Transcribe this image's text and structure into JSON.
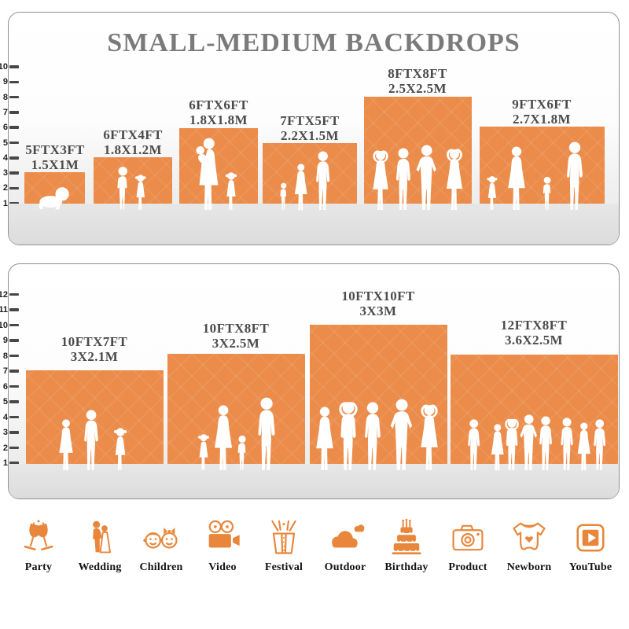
{
  "title": "SMALL-MEDIUM BACKDROPS",
  "panels": [
    {
      "name": "small-medium-backdrops",
      "ruler": [
        "10",
        "9",
        "8",
        "7",
        "6",
        "5",
        "4",
        "3",
        "2",
        "1"
      ],
      "ruler_unit": "ft",
      "backdrops": [
        {
          "ft": "5FTX3FT",
          "m": "1.5X1M"
        },
        {
          "ft": "6FTX4FT",
          "m": "1.8X1.2M"
        },
        {
          "ft": "6FTX6FT",
          "m": "1.8X1.8M"
        },
        {
          "ft": "7FTX5FT",
          "m": "2.2X1.5M"
        },
        {
          "ft": "8FTX8FT",
          "m": "2.5X2.5M"
        },
        {
          "ft": "9FTX6FT",
          "m": "2.7X1.8M"
        }
      ]
    },
    {
      "name": "large-backdrops",
      "ruler": [
        "12",
        "11",
        "10",
        "9",
        "8",
        "7",
        "6",
        "5",
        "4",
        "3",
        "2",
        "1"
      ],
      "ruler_unit": "ft",
      "backdrops": [
        {
          "ft": "10FTX7FT",
          "m": "3X2.1M"
        },
        {
          "ft": "10FTX8FT",
          "m": "3X2.5M"
        },
        {
          "ft": "10FTX10FT",
          "m": "3X3M"
        },
        {
          "ft": "12FTX8FT",
          "m": "3.6X2.5M"
        }
      ]
    }
  ],
  "categories": [
    {
      "label": "Party",
      "icon": "party-icon"
    },
    {
      "label": "Wedding",
      "icon": "wedding-icon"
    },
    {
      "label": "Children",
      "icon": "children-icon"
    },
    {
      "label": "Video",
      "icon": "video-icon"
    },
    {
      "label": "Festival",
      "icon": "festival-icon"
    },
    {
      "label": "Outdoor",
      "icon": "outdoor-icon"
    },
    {
      "label": "Birthday",
      "icon": "birthday-icon"
    },
    {
      "label": "Product",
      "icon": "product-icon"
    },
    {
      "label": "Newborn",
      "icon": "newborn-icon"
    },
    {
      "label": "YouTube",
      "icon": "youtube-icon"
    }
  ],
  "colors": {
    "backdrop_orange": "#EB8C4A",
    "icon_orange": "#E8873C",
    "title_gray": "#7a7a7a",
    "label_gray": "#4b4b4b",
    "ground_gray": "#dedede",
    "panel_border": "#8f8f8f",
    "silhouette_white": "#ffffff"
  }
}
